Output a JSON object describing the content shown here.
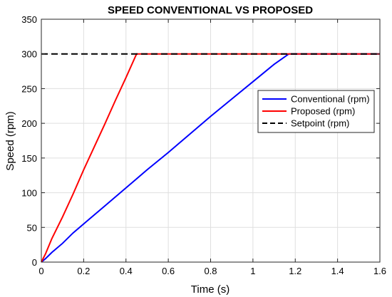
{
  "chart_data": {
    "type": "line",
    "title": "SPEED CONVENTIONAL VS PROPOSED",
    "xlabel": "Time (s)",
    "ylabel": "Speed (rpm)",
    "xlim": [
      0,
      1.6
    ],
    "ylim": [
      0,
      350
    ],
    "xticks": [
      0,
      0.2,
      0.4,
      0.6,
      0.8,
      1,
      1.2,
      1.4,
      1.6
    ],
    "xtick_labels": [
      "0",
      "0.2",
      "0.4",
      "0.6",
      "0.8",
      "1",
      "1.2",
      "1.4",
      "1.6"
    ],
    "yticks": [
      0,
      50,
      100,
      150,
      200,
      250,
      300,
      350
    ],
    "ytick_labels": [
      "0",
      "50",
      "100",
      "150",
      "200",
      "250",
      "300",
      "350"
    ],
    "grid": true,
    "legend_position": "right",
    "series": [
      {
        "name": "Conventional (rpm)",
        "color": "#0000ff",
        "style": "solid",
        "x": [
          0,
          0.02,
          0.05,
          0.1,
          0.15,
          0.2,
          0.3,
          0.4,
          0.5,
          0.6,
          0.7,
          0.8,
          0.9,
          1.0,
          1.1,
          1.17,
          1.6
        ],
        "y": [
          0,
          5,
          14,
          27,
          42,
          55,
          81,
          107,
          133,
          158,
          184,
          210,
          235,
          260,
          285,
          300,
          300
        ]
      },
      {
        "name": "Proposed (rpm)",
        "color": "#ff0000",
        "style": "solid",
        "x": [
          0,
          0.02,
          0.05,
          0.1,
          0.15,
          0.2,
          0.25,
          0.3,
          0.35,
          0.4,
          0.45,
          1.6
        ],
        "y": [
          0,
          12,
          34,
          65,
          98,
          133,
          166,
          199,
          233,
          266,
          300,
          300
        ]
      },
      {
        "name": "Setpoint (rpm)",
        "color": "#000000",
        "style": "dashed",
        "x": [
          0,
          1.6
        ],
        "y": [
          300,
          300
        ]
      }
    ]
  }
}
